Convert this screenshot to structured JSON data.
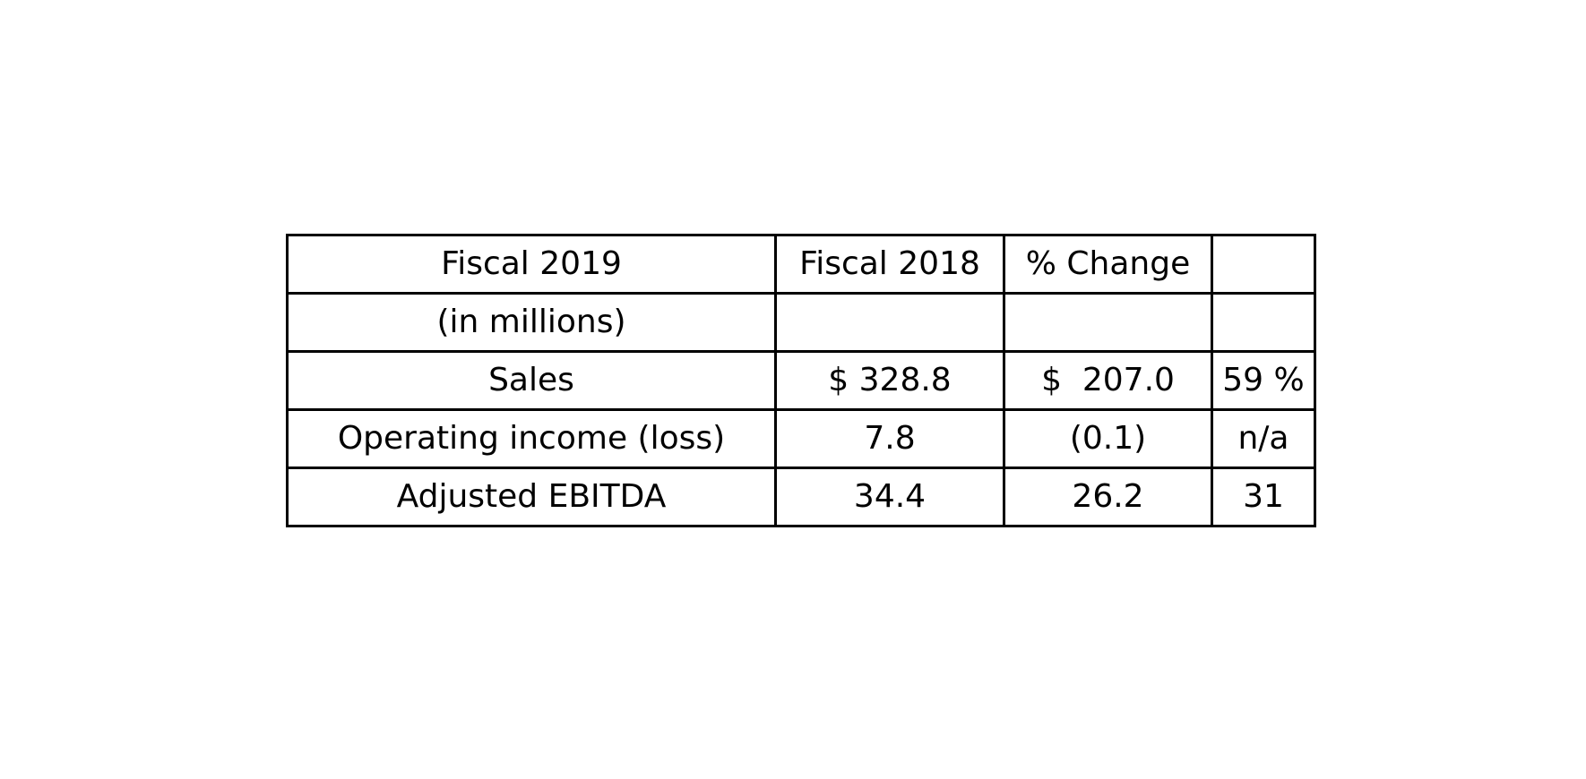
{
  "chart_data": {
    "type": "table",
    "rows": [
      [
        "Fiscal 2019",
        "Fiscal 2018",
        "% Change",
        ""
      ],
      [
        "(in millions)",
        "",
        "",
        ""
      ],
      [
        "Sales",
        "$ 328.8",
        "$  207.0",
        "59 %"
      ],
      [
        "Operating income (loss)",
        "7.8",
        "(0.1)",
        "n/a"
      ],
      [
        "Adjusted EBITDA",
        "34.4",
        "26.2",
        "31"
      ]
    ]
  }
}
